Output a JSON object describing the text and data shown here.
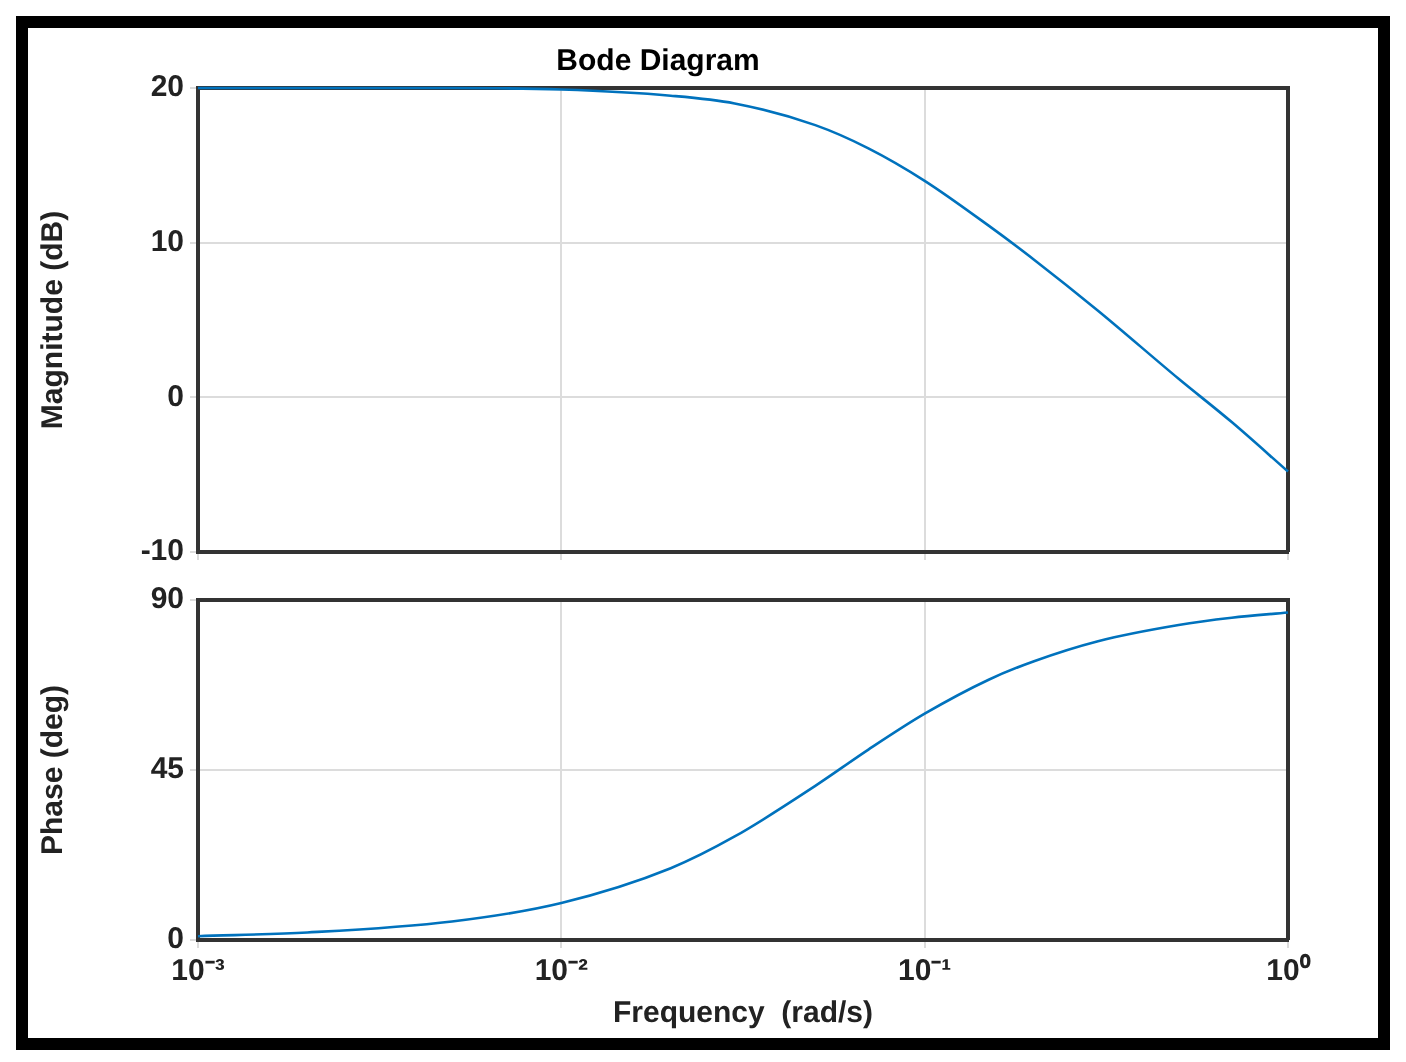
{
  "chart_data": [
    {
      "type": "line",
      "title": "Bode Diagram",
      "ylabel": "Magnitude (dB)",
      "x": [
        0.001,
        0.002,
        0.005,
        0.01,
        0.02,
        0.03,
        0.05,
        0.07,
        0.1,
        0.15,
        0.2,
        0.3,
        0.5,
        0.7,
        1
      ],
      "series": [
        {
          "color": "#0072bd",
          "values": [
            20.0,
            20.0,
            20.0,
            19.9,
            19.5,
            19.0,
            17.6,
            16.1,
            14.0,
            11.1,
            8.9,
            5.6,
            1.2,
            -1.6,
            -4.8
          ]
        }
      ],
      "log": "x",
      "xlim": [
        0.001,
        1
      ],
      "xticks": [
        {
          "value": 0.001,
          "label": null
        },
        {
          "value": 0.01,
          "label": null
        },
        {
          "value": 0.1,
          "label": null
        },
        {
          "value": 1,
          "label": null
        }
      ],
      "ylim": [
        -10,
        20
      ],
      "yticks": [
        -10,
        0,
        10,
        20
      ],
      "grid": true,
      "tick_labels": "y",
      "legend": false,
      "marker": "none",
      "line_style": "solid"
    },
    {
      "type": "line",
      "ylabel": "Phase (deg)",
      "xlabel": "Frequency  (rad/s)",
      "x": [
        0.001,
        0.002,
        0.005,
        0.01,
        0.02,
        0.03,
        0.05,
        0.07,
        0.1,
        0.15,
        0.2,
        0.3,
        0.5,
        0.7,
        1
      ],
      "series": [
        {
          "color": "#0072bd",
          "values": [
            1.0,
            2.0,
            4.9,
            9.8,
            19.0,
            27.4,
            40.8,
            50.4,
            59.9,
            68.9,
            73.8,
            79.1,
            83.4,
            85.3,
            86.7
          ]
        }
      ],
      "log": "x",
      "xlim": [
        0.001,
        1
      ],
      "xticks": [
        {
          "value": 0.001,
          "label": "10⁻³"
        },
        {
          "value": 0.01,
          "label": "10⁻²"
        },
        {
          "value": 0.1,
          "label": "10⁻¹"
        },
        {
          "value": 1,
          "label": "10⁰"
        }
      ],
      "ylim": [
        0,
        90
      ],
      "yticks": [
        0,
        45,
        90
      ],
      "grid": true,
      "legend": false,
      "marker": "none",
      "line_style": "solid"
    }
  ]
}
